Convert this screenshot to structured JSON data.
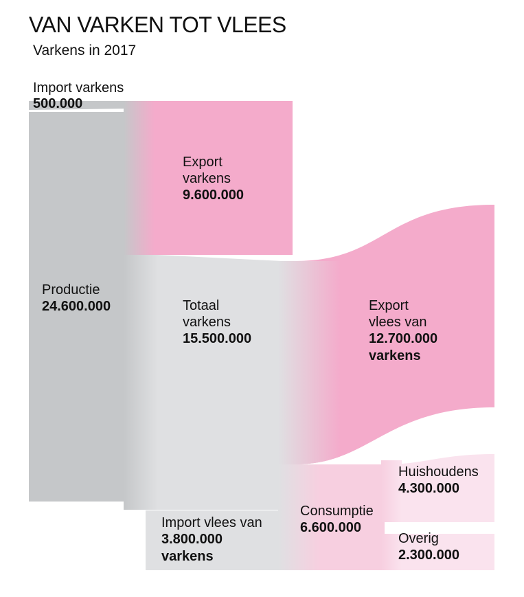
{
  "title": "VAN VARKEN TOT VLEES",
  "subtitle": "Varkens in 2017",
  "colors": {
    "gray_dark": "#c5c7c9",
    "gray_light": "#dfe0e2",
    "pink": "#f4abcb",
    "pink_light": "#f7cfe0",
    "pink_lighter": "#fae3ee"
  },
  "nodes": {
    "import_varkens": {
      "label": "Import varkens",
      "value": "500.000"
    },
    "productie": {
      "label": "Productie",
      "value": "24.600.000"
    },
    "export_varkens": {
      "label1": "Export",
      "label2": "varkens",
      "value": "9.600.000"
    },
    "totaal_varkens": {
      "label1": "Totaal",
      "label2": "varkens",
      "value": "15.500.000"
    },
    "export_vlees": {
      "label1": "Export",
      "label2": "vlees van",
      "value": "12.700.000",
      "unit": "varkens"
    },
    "import_vlees": {
      "label": "Import vlees van",
      "value": "3.800.000",
      "unit": "varkens"
    },
    "consumptie": {
      "label": "Consumptie",
      "value": "6.600.000"
    },
    "huishoudens": {
      "label": "Huishoudens",
      "value": "4.300.000"
    },
    "overig": {
      "label": "Overig",
      "value": "2.300.000"
    }
  }
}
